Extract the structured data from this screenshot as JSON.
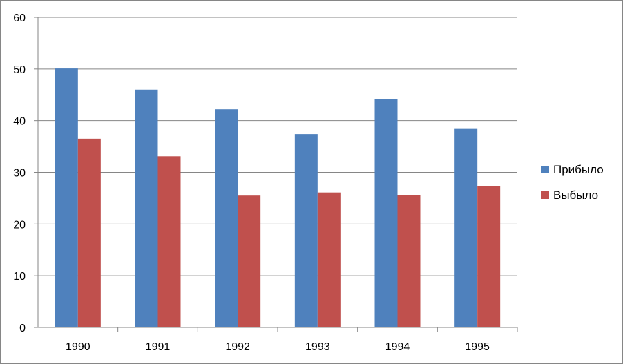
{
  "chart_data": {
    "type": "bar",
    "categories": [
      "1990",
      "1991",
      "1992",
      "1993",
      "1994",
      "1995"
    ],
    "series": [
      {
        "name": "Прибыло",
        "color": "#4F81BD",
        "values": [
          50.1,
          46.0,
          42.2,
          37.4,
          44.1,
          38.4
        ]
      },
      {
        "name": "Выбыло",
        "color": "#C0504D",
        "values": [
          36.5,
          33.1,
          25.5,
          26.1,
          25.6,
          27.3
        ]
      }
    ],
    "ylim": [
      0,
      60
    ],
    "yticks": [
      "0",
      "10",
      "20",
      "30",
      "40",
      "50",
      "60"
    ],
    "grid": true,
    "legend": "right"
  }
}
